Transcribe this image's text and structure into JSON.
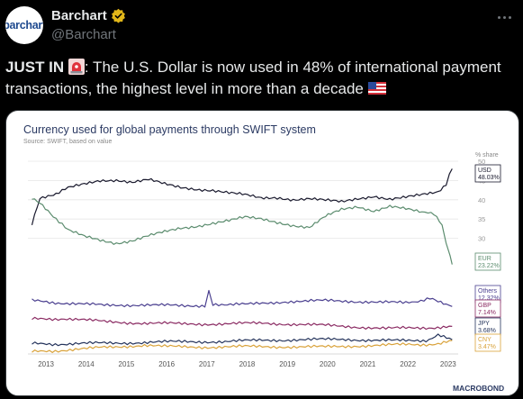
{
  "tweet": {
    "author_name": "Barchart",
    "handle": "@Barchart",
    "avatar_text": "barchart",
    "headline": "JUST IN",
    "text_line1": ": The U.S. Dollar is now used in 48% of international payment",
    "text_line2": "transactions, the highest level in more than a decade"
  },
  "colors": {
    "background": "#000000",
    "text": "#e7e9ea",
    "secondary_text": "#71767b",
    "verified_badge": "#e2b719"
  },
  "icons": [
    "verified-badge-icon",
    "more-options-icon",
    "siren-emoji-icon",
    "us-flag-emoji-icon"
  ],
  "chart_data": {
    "type": "line",
    "title": "Currency used for global payments through SWIFT system",
    "subtitle": "Source: SWIFT, based on value",
    "unit_label": "% share",
    "brand": "MACROBOND",
    "x": [
      "2013",
      "2014",
      "2015",
      "2016",
      "2017",
      "2018",
      "2019",
      "2020",
      "2021",
      "2022",
      "2023"
    ],
    "xlim": [
      2012.6,
      2023.3
    ],
    "ylim": [
      0,
      50
    ],
    "y_ticks": [
      30,
      35,
      40,
      45,
      50
    ],
    "y_tick_labels": [
      "30",
      "35",
      "40",
      "45",
      "50"
    ],
    "series": [
      {
        "name": "USD",
        "last_label": "48.03%",
        "color": "#1a1a2e",
        "values": [
          [
            2012.7,
            33.5
          ],
          [
            2012.9,
            40.2
          ],
          [
            2013.3,
            41.5
          ],
          [
            2013.6,
            43
          ],
          [
            2014.0,
            44
          ],
          [
            2014.4,
            45
          ],
          [
            2014.8,
            45.2
          ],
          [
            2015.2,
            44.6
          ],
          [
            2015.6,
            45.2
          ],
          [
            2016.0,
            44
          ],
          [
            2016.4,
            43.2
          ],
          [
            2016.8,
            42.8
          ],
          [
            2017.2,
            42.5
          ],
          [
            2017.6,
            41.8
          ],
          [
            2018.0,
            41.2
          ],
          [
            2018.4,
            40.4
          ],
          [
            2018.8,
            40.6
          ],
          [
            2019.2,
            40.1
          ],
          [
            2019.6,
            40.3
          ],
          [
            2020.0,
            39.8
          ],
          [
            2020.4,
            39.4
          ],
          [
            2020.8,
            40.3
          ],
          [
            2021.2,
            41
          ],
          [
            2021.6,
            40.2
          ],
          [
            2022.0,
            40.6
          ],
          [
            2022.4,
            41.2
          ],
          [
            2022.8,
            42
          ],
          [
            2023.0,
            44
          ],
          [
            2023.08,
            46.5
          ],
          [
            2023.15,
            48.03
          ]
        ]
      },
      {
        "name": "EUR",
        "last_label": "23.22%",
        "color": "#5b8c6e",
        "values": [
          [
            2012.7,
            40.2
          ],
          [
            2012.9,
            39
          ],
          [
            2013.3,
            35
          ],
          [
            2013.6,
            32
          ],
          [
            2014.0,
            30.5
          ],
          [
            2014.4,
            29.6
          ],
          [
            2014.8,
            28.8
          ],
          [
            2015.2,
            29.4
          ],
          [
            2015.6,
            30.6
          ],
          [
            2016.0,
            31.6
          ],
          [
            2016.4,
            32.6
          ],
          [
            2016.8,
            33.2
          ],
          [
            2017.2,
            34
          ],
          [
            2017.6,
            34.6
          ],
          [
            2018.0,
            35.4
          ],
          [
            2018.4,
            35
          ],
          [
            2018.8,
            34.2
          ],
          [
            2019.2,
            33.4
          ],
          [
            2019.6,
            32.8
          ],
          [
            2020.0,
            35.6
          ],
          [
            2020.4,
            37.4
          ],
          [
            2020.8,
            38.2
          ],
          [
            2021.2,
            37.2
          ],
          [
            2021.6,
            38.4
          ],
          [
            2022.0,
            37.6
          ],
          [
            2022.4,
            36.6
          ],
          [
            2022.7,
            36.4
          ],
          [
            2022.9,
            33.4
          ],
          [
            2023.0,
            29
          ],
          [
            2023.1,
            25
          ],
          [
            2023.15,
            23.22
          ]
        ]
      },
      {
        "name": "Others",
        "last_label": "12.32%",
        "color": "#4a3f8f",
        "values": [
          [
            2012.7,
            13.8
          ],
          [
            2013.5,
            13.2
          ],
          [
            2014.5,
            12.6
          ],
          [
            2015.5,
            12.8
          ],
          [
            2016.5,
            12.4
          ],
          [
            2017.0,
            12.6
          ],
          [
            2017.1,
            16
          ],
          [
            2017.2,
            13
          ],
          [
            2018.0,
            12.8
          ],
          [
            2019.0,
            13.6
          ],
          [
            2020.0,
            13.8
          ],
          [
            2021.0,
            13.6
          ],
          [
            2022.0,
            13.2
          ],
          [
            2022.6,
            14.4
          ],
          [
            2023.0,
            13
          ],
          [
            2023.15,
            12.32
          ]
        ]
      },
      {
        "name": "GBP",
        "last_label": "7.14%",
        "color": "#8a2a62",
        "values": [
          [
            2012.7,
            9
          ],
          [
            2013.5,
            9.2
          ],
          [
            2014.5,
            8.4
          ],
          [
            2015.5,
            8
          ],
          [
            2016.5,
            7.8
          ],
          [
            2017.5,
            7.8
          ],
          [
            2018.5,
            8
          ],
          [
            2019.5,
            7.6
          ],
          [
            2020.5,
            7.2
          ],
          [
            2021.5,
            6.6
          ],
          [
            2022.5,
            6.8
          ],
          [
            2023.15,
            7.14
          ]
        ]
      },
      {
        "name": "JPY",
        "last_label": "3.68%",
        "color": "#25345c",
        "values": [
          [
            2012.7,
            2.6
          ],
          [
            2013.5,
            2.6
          ],
          [
            2014.5,
            2.8
          ],
          [
            2015.5,
            3
          ],
          [
            2016.5,
            3.2
          ],
          [
            2017.5,
            3.2
          ],
          [
            2018.5,
            3.6
          ],
          [
            2019.5,
            3.7
          ],
          [
            2020.5,
            3.8
          ],
          [
            2021.5,
            3.5
          ],
          [
            2022.0,
            3.4
          ],
          [
            2022.5,
            3.5
          ],
          [
            2022.8,
            5
          ],
          [
            2023.15,
            3.68
          ]
        ]
      },
      {
        "name": "CNY",
        "last_label": "3.47%",
        "color": "#d9a23a",
        "values": [
          [
            2012.7,
            0.5
          ],
          [
            2013.5,
            1
          ],
          [
            2014.0,
            1.3
          ],
          [
            2014.5,
            1.7
          ],
          [
            2015.0,
            2
          ],
          [
            2015.5,
            2.3
          ],
          [
            2016.0,
            1.9
          ],
          [
            2017.0,
            1.8
          ],
          [
            2018.0,
            1.9
          ],
          [
            2019.0,
            1.9
          ],
          [
            2020.0,
            1.8
          ],
          [
            2021.0,
            2.2
          ],
          [
            2022.0,
            2.4
          ],
          [
            2022.8,
            2.6
          ],
          [
            2023.15,
            3.47
          ]
        ]
      }
    ]
  }
}
